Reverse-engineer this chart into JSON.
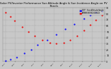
{
  "title": "Solar PV/Inverter Performance Sun Altitude Angle & Sun Incidence Angle on PV Panels",
  "title_fontsize": 2.8,
  "background_color": "#c8c8c8",
  "plot_bg_color": "#c8c8c8",
  "grid_color": "#999999",
  "legend_labels": [
    "HOT : Sun Altitude Angle",
    "APPARENTINCIDENCE"
  ],
  "legend_colors": [
    "#0000ff",
    "#ff0000"
  ],
  "ylim": [
    0,
    90
  ],
  "yticks": [
    0,
    10,
    20,
    30,
    40,
    50,
    60,
    70,
    80,
    90
  ],
  "sun_altitude_x": [
    0,
    0.5,
    1.2,
    2.0,
    2.8,
    3.5,
    4.5,
    5.5,
    6.5,
    7.5,
    8.5,
    9.2,
    9.8,
    10.5
  ],
  "sun_altitude_y": [
    2,
    4,
    8,
    14,
    20,
    28,
    36,
    45,
    55,
    63,
    72,
    78,
    82,
    85
  ],
  "sun_incidence_x": [
    0,
    0.5,
    1.0,
    1.8,
    2.5,
    3.2,
    4.0,
    4.8,
    5.5,
    6.3,
    7.0,
    7.8,
    8.5,
    9.2,
    9.8,
    10.5
  ],
  "sun_incidence_y": [
    82,
    75,
    68,
    58,
    50,
    43,
    36,
    32,
    30,
    32,
    36,
    43,
    52,
    62,
    70,
    78
  ],
  "x_ticks": [
    0,
    1.05,
    2.1,
    3.15,
    4.2,
    5.25,
    6.3,
    7.35,
    8.4,
    9.45,
    10.5
  ],
  "x_labels": [
    "4:6:3",
    "5:8:6",
    "6:0:5",
    "7:3:3",
    "7:5:5",
    "8:5:3",
    "9:5:0",
    "10:4:3",
    "11:4:0",
    "12:3:3",
    "13:3:0"
  ],
  "blue_color": "#0000ff",
  "red_color": "#ee0000",
  "text_color": "#000000",
  "right_yaxis": true
}
